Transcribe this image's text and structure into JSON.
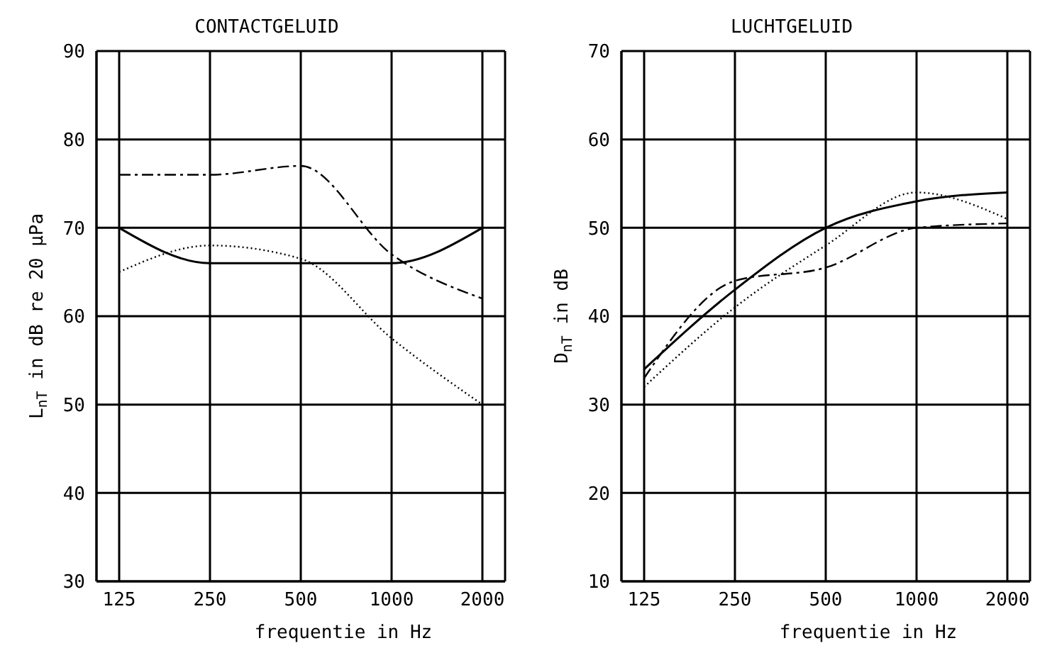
{
  "chart_data": [
    {
      "type": "line",
      "title": "CONTACTGELUID",
      "xlabel": "frequentie in Hz",
      "ylabel": "L$_{nT}$ in dB re 20 μPa",
      "categories": [
        "125",
        "250",
        "500",
        "1000",
        "2000"
      ],
      "ylim": [
        30,
        90
      ],
      "yticks": [
        30,
        40,
        50,
        60,
        70,
        80,
        90
      ],
      "grid": true,
      "legend": false,
      "marker": "none",
      "series": [
        {
          "color": "#000000",
          "line_style": "solid",
          "values": [
            70,
            66,
            66,
            66,
            70
          ]
        },
        {
          "color": "#000000",
          "line_style": "dotted",
          "values": [
            65,
            68,
            66.5,
            57.5,
            50
          ]
        },
        {
          "color": "#000000",
          "line_style": "dashed",
          "values": [
            76,
            76,
            77,
            67,
            62
          ]
        }
      ]
    },
    {
      "type": "line",
      "title": "LUCHTGELUID",
      "xlabel": "frequentie in Hz",
      "ylabel": "D$_{nT}$ in dB",
      "categories": [
        "125",
        "250",
        "500",
        "1000",
        "2000"
      ],
      "ylim": [
        10,
        70
      ],
      "yticks": [
        10,
        20,
        30,
        40,
        50,
        60,
        70
      ],
      "grid": true,
      "legend": false,
      "marker": "none",
      "series": [
        {
          "color": "#000000",
          "line_style": "solid",
          "values": [
            34,
            43,
            50,
            53,
            54
          ]
        },
        {
          "color": "#000000",
          "line_style": "dotted",
          "values": [
            32,
            41,
            48,
            54,
            51
          ]
        },
        {
          "color": "#000000",
          "line_style": "dashed",
          "values": [
            33,
            44,
            45.5,
            50,
            50.5
          ]
        }
      ]
    }
  ]
}
